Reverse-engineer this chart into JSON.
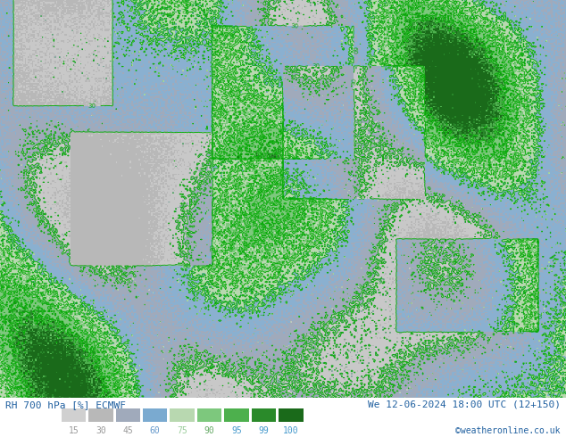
{
  "title_left": "RH 700 hPa [%] ECMWF",
  "title_right": "We 12-06-2024 18:00 UTC (12+150)",
  "copyright": "©weatheronline.co.uk",
  "colorbar_labels": [
    "15",
    "30",
    "45",
    "60",
    "75",
    "90",
    "95",
    "99",
    "100"
  ],
  "colorbar_colors": [
    "#d4d4d4",
    "#b8b8b8",
    "#9ca9c0",
    "#7da8d8",
    "#aacfa8",
    "#78c278",
    "#4db84d",
    "#2e8b2e",
    "#1a6b1a"
  ],
  "bg_color": "#ffffff",
  "label_color_left": "#4080c0",
  "label_color_right": "#4080c0",
  "bottom_bar_colors": [
    "#d0d0d0",
    "#b0b0b0",
    "#8899bb",
    "#6699cc",
    "#99cc99",
    "#66bb66",
    "#33aa33",
    "#228822",
    "#116611"
  ],
  "map_bg": "#c8c8c8",
  "figsize": [
    6.34,
    4.9
  ],
  "dpi": 100
}
